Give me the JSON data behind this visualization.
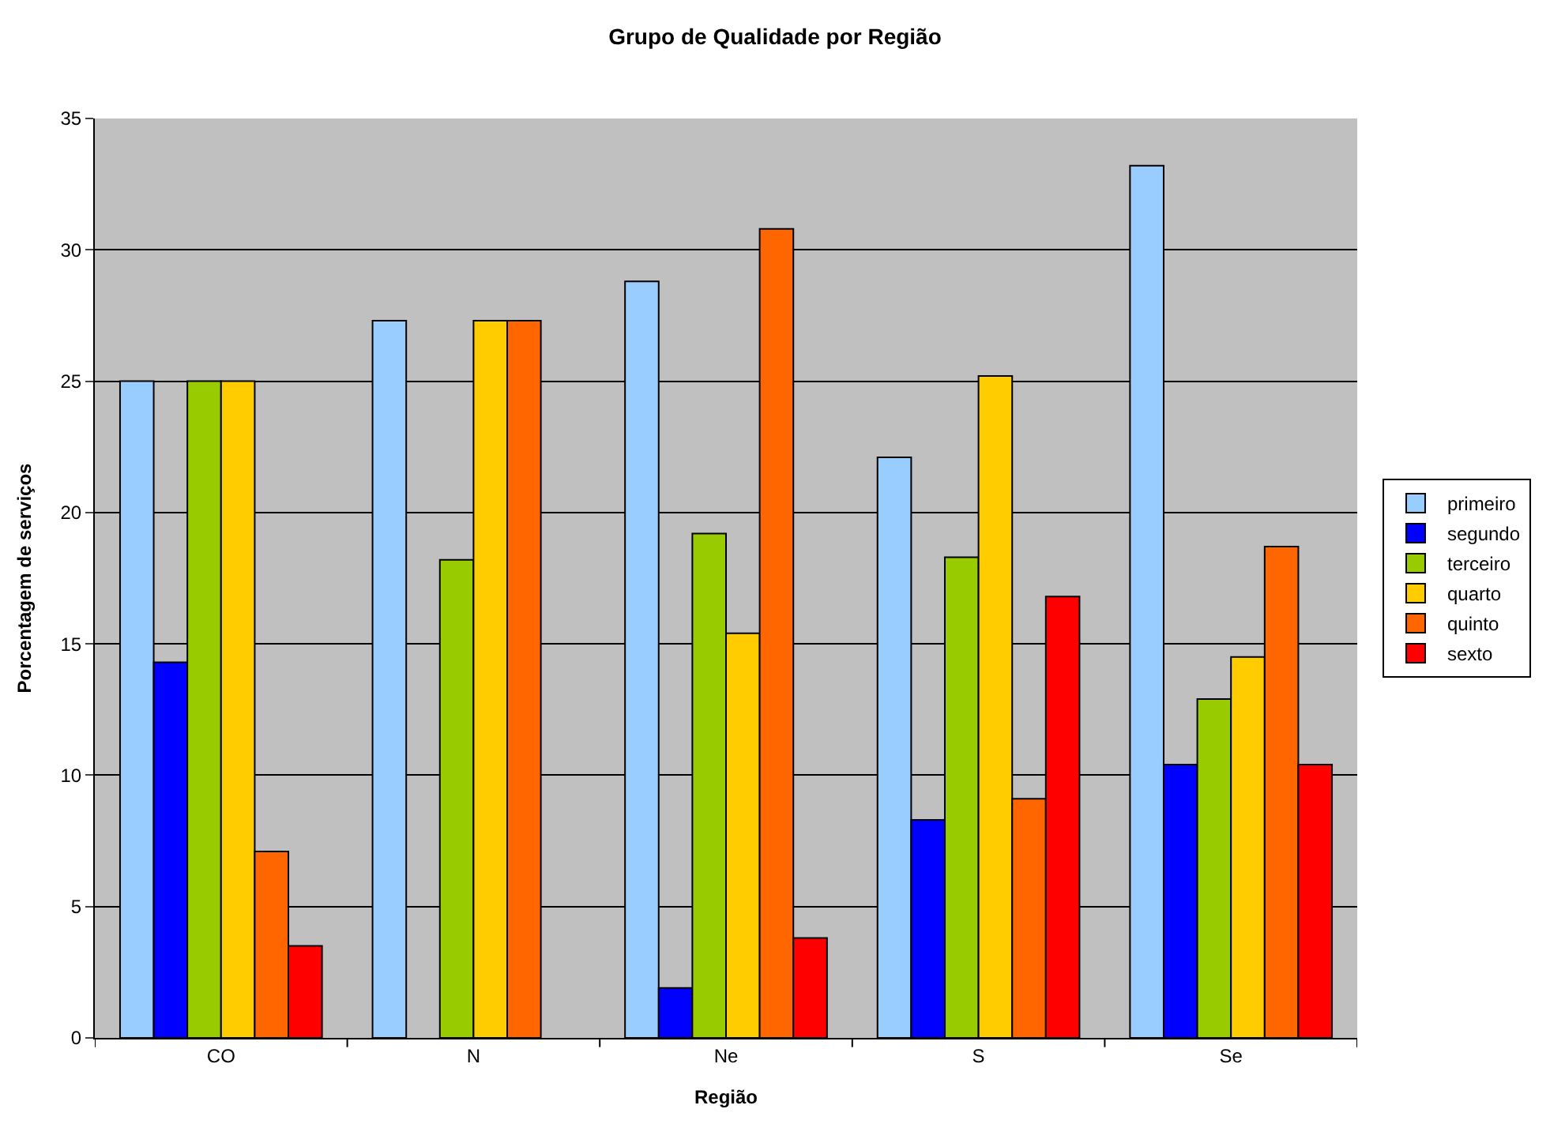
{
  "chart_data": {
    "type": "bar",
    "title": "Grupo de Qualidade por Região",
    "xlabel": "Região",
    "ylabel": "Porcentagem de serviços",
    "categories": [
      "CO",
      "N",
      "Ne",
      "S",
      "Se"
    ],
    "series": [
      {
        "name": "primeiro",
        "color": "#99ccff",
        "values": [
          25,
          27.3,
          28.8,
          22.1,
          33.2
        ]
      },
      {
        "name": "segundo",
        "color": "#0000ff",
        "values": [
          14.3,
          null,
          1.9,
          8.3,
          10.4
        ]
      },
      {
        "name": "terceiro",
        "color": "#99cc00",
        "values": [
          25,
          18.2,
          19.2,
          18.3,
          12.9
        ]
      },
      {
        "name": "quarto",
        "color": "#ffcc00",
        "values": [
          25,
          27.3,
          15.4,
          25.2,
          14.5
        ]
      },
      {
        "name": "quinto",
        "color": "#ff6600",
        "values": [
          7.1,
          27.3,
          30.8,
          9.1,
          18.7
        ]
      },
      {
        "name": "sexto",
        "color": "#ff0000",
        "values": [
          3.5,
          null,
          3.8,
          16.8,
          10.4
        ]
      }
    ],
    "ylim": [
      0,
      35
    ],
    "yticks": [
      0,
      5,
      10,
      15,
      20,
      25,
      30,
      35
    ],
    "grid": "y",
    "legend": "right"
  }
}
